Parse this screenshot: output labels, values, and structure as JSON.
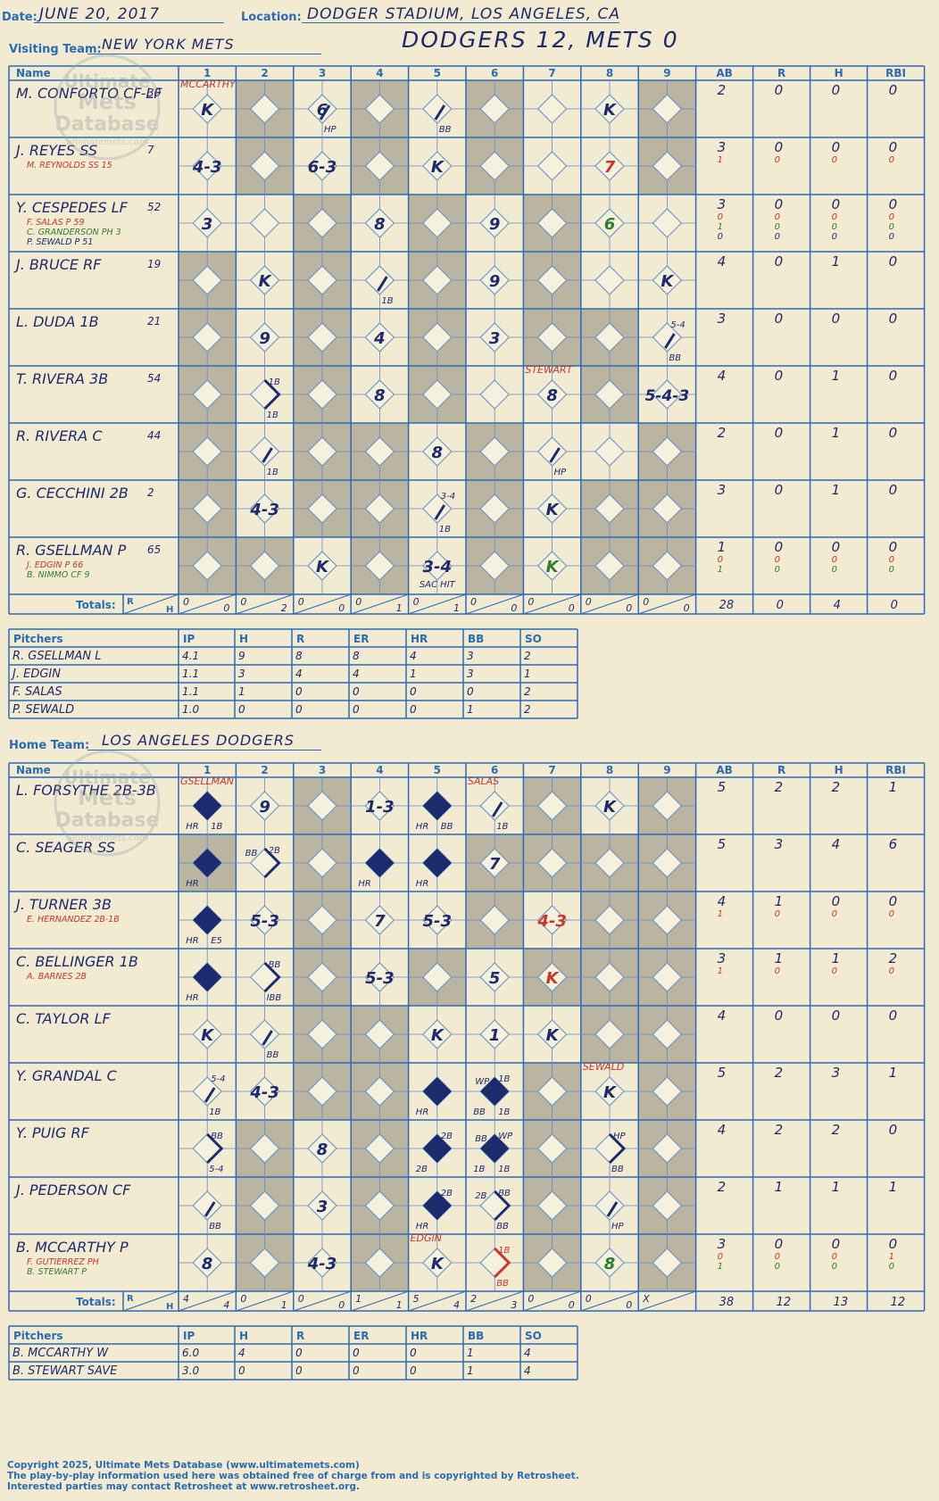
{
  "header": {
    "date_label": "Date:",
    "date": "JUNE 20, 2017",
    "location_label": "Location:",
    "location": "DODGER STADIUM, LOS ANGELES, CA",
    "visiting_label": "Visiting Team:",
    "visiting_team": "NEW YORK METS",
    "home_label": "Home Team:",
    "home_team": "LOS ANGELES DODGERS",
    "score_title": "DODGERS 12, METS 0"
  },
  "watermark": [
    "Ultimate",
    "Mets",
    "Database",
    "ultimatemets.com"
  ],
  "colors": {
    "ink": "#1c2a6e",
    "red": "#c8352a",
    "green": "#2e7d32",
    "grid": "#2a6bb5",
    "shade": "#bab4a0",
    "paper": "#f2ebd2"
  },
  "table_headers": {
    "name": "Name",
    "innings": [
      "1",
      "2",
      "3",
      "4",
      "5",
      "6",
      "7",
      "8",
      "9"
    ],
    "stats": [
      "AB",
      "R",
      "H",
      "RBI"
    ],
    "totals": "Totals:",
    "totals_rh": [
      "R",
      "H"
    ]
  },
  "pitcher_headers": [
    "Pitchers",
    "IP",
    "H",
    "R",
    "ER",
    "HR",
    "BB",
    "SO"
  ],
  "visitors": {
    "shaded_cells": [
      [
        2,
        4,
        6,
        9
      ],
      [
        2,
        4,
        6,
        9
      ],
      [
        3,
        5,
        7
      ],
      [
        1,
        3,
        5,
        7
      ],
      [
        1,
        3,
        5,
        7,
        8
      ],
      [
        1,
        3,
        5,
        8
      ],
      [
        1,
        3,
        4,
        6,
        9
      ],
      [
        1,
        3,
        4,
        6,
        8,
        9
      ],
      [
        1,
        2,
        4,
        6,
        8,
        9
      ]
    ],
    "batters": [
      {
        "name": "M. CONFORTO CF-LF",
        "num": "30",
        "subs": [],
        "stats": [
          [
            "2",
            "0",
            "0",
            "0"
          ]
        ],
        "plays": [
          {
            "inn": 1,
            "text": "K"
          },
          {
            "inn": 3,
            "text": "6",
            "bl": "HP",
            "slash": true
          },
          {
            "inn": 5,
            "bl": "BB",
            "slash": true
          },
          {
            "inn": 8,
            "text": "K"
          }
        ],
        "notes": [
          {
            "inn": 1,
            "text": "MCCARTHY"
          }
        ]
      },
      {
        "name": "J. REYES SS",
        "num": "7",
        "subs": [
          {
            "name": "M. REYNOLDS SS",
            "num": "15",
            "color": "red"
          }
        ],
        "stats": [
          [
            "3",
            "0",
            "0",
            "0"
          ],
          [
            "1",
            "0",
            "0",
            "0"
          ]
        ],
        "plays": [
          {
            "inn": 1,
            "text": "4-3"
          },
          {
            "inn": 3,
            "text": "6-3"
          },
          {
            "inn": 5,
            "text": "K"
          },
          {
            "inn": 8,
            "text": "7",
            "color": "red"
          }
        ],
        "notes": []
      },
      {
        "name": "Y. CESPEDES LF",
        "num": "52",
        "subs": [
          {
            "name": "F. SALAS P",
            "num": "59",
            "color": "red"
          },
          {
            "name": "C. GRANDERSON PH",
            "num": "3",
            "color": "green"
          },
          {
            "name": "P. SEWALD P",
            "num": "51",
            "color": "ink"
          }
        ],
        "stats": [
          [
            "3",
            "0",
            "0",
            "0"
          ],
          [
            "0",
            "0",
            "0",
            "0"
          ],
          [
            "1",
            "0",
            "0",
            "0"
          ],
          [
            "0",
            "0",
            "0",
            "0"
          ]
        ],
        "plays": [
          {
            "inn": 1,
            "text": "3"
          },
          {
            "inn": 4,
            "text": "8"
          },
          {
            "inn": 6,
            "text": "9"
          },
          {
            "inn": 8,
            "text": "6",
            "color": "green"
          }
        ],
        "notes": []
      },
      {
        "name": "J. BRUCE RF",
        "num": "19",
        "subs": [],
        "stats": [
          [
            "4",
            "0",
            "1",
            "0"
          ]
        ],
        "plays": [
          {
            "inn": 2,
            "text": "K"
          },
          {
            "inn": 4,
            "bl": "1B",
            "slash": true
          },
          {
            "inn": 6,
            "text": "9"
          },
          {
            "inn": 9,
            "text": "K"
          }
        ],
        "notes": []
      },
      {
        "name": "L. DUDA 1B",
        "num": "21",
        "subs": [],
        "stats": [
          [
            "3",
            "0",
            "0",
            "0"
          ]
        ],
        "plays": [
          {
            "inn": 2,
            "text": "9"
          },
          {
            "inn": 4,
            "text": "4"
          },
          {
            "inn": 6,
            "text": "3"
          },
          {
            "inn": 9,
            "tr": "5-4",
            "bl": "BB",
            "slash": true
          }
        ],
        "notes": []
      },
      {
        "name": "T. RIVERA 3B",
        "num": "54",
        "subs": [],
        "stats": [
          [
            "4",
            "0",
            "1",
            "0"
          ]
        ],
        "plays": [
          {
            "inn": 2,
            "tr": "1B",
            "bl": "1B",
            "bracket": true
          },
          {
            "inn": 4,
            "text": "8"
          },
          {
            "inn": 7,
            "text": "8"
          },
          {
            "inn": 9,
            "text": "5-4-3"
          }
        ],
        "notes": [
          {
            "inn": 7,
            "text": "STEWART"
          }
        ]
      },
      {
        "name": "R. RIVERA C",
        "num": "44",
        "subs": [],
        "stats": [
          [
            "2",
            "0",
            "1",
            "0"
          ]
        ],
        "plays": [
          {
            "inn": 2,
            "bl": "1B",
            "slash": true
          },
          {
            "inn": 5,
            "text": "8"
          },
          {
            "inn": 7,
            "bl": "HP",
            "slash": true
          }
        ],
        "notes": []
      },
      {
        "name": "G. CECCHINI 2B",
        "num": "2",
        "subs": [],
        "stats": [
          [
            "3",
            "0",
            "1",
            "0"
          ]
        ],
        "plays": [
          {
            "inn": 2,
            "text": "4-3"
          },
          {
            "inn": 5,
            "tr": "3-4",
            "bl": "1B",
            "slash": true
          },
          {
            "inn": 7,
            "text": "K"
          }
        ],
        "notes": []
      },
      {
        "name": "R. GSELLMAN P",
        "num": "65",
        "subs": [
          {
            "name": "J. EDGIN P",
            "num": "66",
            "color": "red"
          },
          {
            "name": "B. NIMMO CF",
            "num": "9",
            "color": "green"
          }
        ],
        "stats": [
          [
            "1",
            "0",
            "0",
            "0"
          ],
          [
            "0",
            "0",
            "0",
            "0"
          ],
          [
            "1",
            "0",
            "0",
            "0"
          ]
        ],
        "plays": [
          {
            "inn": 3,
            "text": "K"
          },
          {
            "inn": 5,
            "text": "3-4",
            "below": "SAC HIT"
          },
          {
            "inn": 7,
            "text": "K",
            "color": "green"
          }
        ],
        "notes": []
      }
    ],
    "totals": [
      [
        "0",
        "0"
      ],
      [
        "0",
        "2"
      ],
      [
        "0",
        "0"
      ],
      [
        "0",
        "1"
      ],
      [
        "0",
        "1"
      ],
      [
        "0",
        "0"
      ],
      [
        "0",
        "0"
      ],
      [
        "0",
        "0"
      ],
      [
        "0",
        "0"
      ]
    ],
    "totals_stats": [
      "28",
      "0",
      "4",
      "0"
    ],
    "pitchers": [
      [
        "R. GSELLMAN  L",
        "4.1",
        "9",
        "8",
        "8",
        "4",
        "3",
        "2"
      ],
      [
        "J. EDGIN",
        "1.1",
        "3",
        "4",
        "4",
        "1",
        "3",
        "1"
      ],
      [
        "F. SALAS",
        "1.1",
        "1",
        "0",
        "0",
        "0",
        "0",
        "2"
      ],
      [
        "P. SEWALD",
        "1.0",
        "0",
        "0",
        "0",
        "0",
        "1",
        "2"
      ]
    ]
  },
  "home": {
    "shaded_cells": [
      [
        3,
        7,
        9
      ],
      [
        1,
        3,
        6,
        7,
        8,
        9
      ],
      [
        3,
        6,
        8,
        9
      ],
      [
        3,
        5,
        7,
        8,
        9
      ],
      [
        3,
        4,
        8,
        9
      ],
      [
        3,
        4,
        7,
        9
      ],
      [
        2,
        4,
        7,
        9
      ],
      [
        2,
        4,
        7,
        9
      ],
      [
        2,
        4,
        7,
        9
      ]
    ],
    "batters": [
      {
        "name": "L. FORSYTHE 2B-3B",
        "num": "",
        "subs": [],
        "stats": [
          [
            "5",
            "2",
            "2",
            "1"
          ]
        ],
        "plays": [
          {
            "inn": 1,
            "run": true,
            "bl": "HR",
            "br": "1B"
          },
          {
            "inn": 2,
            "text": "9"
          },
          {
            "inn": 4,
            "text": "1-3"
          },
          {
            "inn": 5,
            "run": true,
            "bl": "HR",
            "br": "BB"
          },
          {
            "inn": 6,
            "bl": "1B",
            "slash": true
          },
          {
            "inn": 8,
            "text": "K"
          }
        ],
        "notes": [
          {
            "inn": 1,
            "text": "GSELLMAN"
          },
          {
            "inn": 6,
            "text": "SALAS"
          }
        ]
      },
      {
        "name": "C. SEAGER SS",
        "num": "",
        "subs": [],
        "stats": [
          [
            "5",
            "3",
            "4",
            "6"
          ]
        ],
        "plays": [
          {
            "inn": 1,
            "run": true,
            "bl": "HR"
          },
          {
            "inn": 2,
            "tl": "BB",
            "tr": "2B",
            "bracket": true
          },
          {
            "inn": 4,
            "run": true,
            "bl": "HR"
          },
          {
            "inn": 5,
            "run": true,
            "bl": "HR"
          },
          {
            "inn": 6,
            "text": "7"
          }
        ],
        "notes": []
      },
      {
        "name": "J. TURNER 3B",
        "num": "",
        "subs": [
          {
            "name": "E. HERNANDEZ 2B-1B",
            "num": "",
            "color": "red"
          }
        ],
        "stats": [
          [
            "4",
            "1",
            "0",
            "0"
          ],
          [
            "1",
            "0",
            "0",
            "0"
          ]
        ],
        "plays": [
          {
            "inn": 1,
            "run": true,
            "bl": "HR",
            "br": "E5"
          },
          {
            "inn": 2,
            "text": "5-3"
          },
          {
            "inn": 4,
            "text": "7"
          },
          {
            "inn": 5,
            "text": "5-3"
          },
          {
            "inn": 7,
            "text": "4-3",
            "color": "red"
          }
        ],
        "notes": []
      },
      {
        "name": "C. BELLINGER 1B",
        "num": "",
        "subs": [
          {
            "name": "A. BARNES 2B",
            "num": "",
            "color": "red"
          }
        ],
        "stats": [
          [
            "3",
            "1",
            "1",
            "2"
          ],
          [
            "1",
            "0",
            "0",
            "0"
          ]
        ],
        "plays": [
          {
            "inn": 1,
            "run": true,
            "bl": "HR"
          },
          {
            "inn": 2,
            "tr": "BB",
            "bl": "IBB",
            "bracket": true
          },
          {
            "inn": 4,
            "text": "5-3"
          },
          {
            "inn": 6,
            "text": "5"
          },
          {
            "inn": 7,
            "text": "K",
            "color": "red"
          }
        ],
        "notes": []
      },
      {
        "name": "C. TAYLOR LF",
        "num": "",
        "subs": [],
        "stats": [
          [
            "4",
            "0",
            "0",
            "0"
          ]
        ],
        "plays": [
          {
            "inn": 1,
            "text": "K"
          },
          {
            "inn": 2,
            "bl": "BB",
            "slash": true
          },
          {
            "inn": 5,
            "text": "K"
          },
          {
            "inn": 6,
            "text": "1"
          },
          {
            "inn": 7,
            "text": "K"
          }
        ],
        "notes": []
      },
      {
        "name": "Y. GRANDAL C",
        "num": "",
        "subs": [],
        "stats": [
          [
            "5",
            "2",
            "3",
            "1"
          ]
        ],
        "plays": [
          {
            "inn": 1,
            "tr": "5-4",
            "bl": "1B",
            "slash": true
          },
          {
            "inn": 2,
            "text": "4-3"
          },
          {
            "inn": 5,
            "run": true,
            "bl": "HR"
          },
          {
            "inn": 6,
            "run": true,
            "tl": "WP",
            "tr": "1B",
            "bl": "BB",
            "br": "1B"
          },
          {
            "inn": 8,
            "text": "K"
          }
        ],
        "notes": [
          {
            "inn": 8,
            "text": "SEWALD"
          }
        ]
      },
      {
        "name": "Y. PUIG RF",
        "num": "",
        "subs": [],
        "stats": [
          [
            "4",
            "2",
            "2",
            "0"
          ]
        ],
        "plays": [
          {
            "inn": 1,
            "tr": "BB",
            "bl": "5-4",
            "bracket": true
          },
          {
            "inn": 3,
            "text": "8"
          },
          {
            "inn": 5,
            "run": true,
            "tr": "2B",
            "bl": "2B"
          },
          {
            "inn": 6,
            "run": true,
            "tl": "BB",
            "tr": "WP",
            "bl": "1B",
            "br": "1B"
          },
          {
            "inn": 8,
            "tr": "HP",
            "bl": "BB",
            "bracket": true
          }
        ],
        "notes": []
      },
      {
        "name": "J. PEDERSON CF",
        "num": "",
        "subs": [],
        "stats": [
          [
            "2",
            "1",
            "1",
            "1"
          ]
        ],
        "plays": [
          {
            "inn": 1,
            "bl": "BB",
            "slash": true
          },
          {
            "inn": 3,
            "text": "3"
          },
          {
            "inn": 5,
            "run": true,
            "tr": "2B",
            "bl": "HR"
          },
          {
            "inn": 6,
            "tl": "2B",
            "tr": "BB",
            "bl": "BB",
            "bracket": true
          },
          {
            "inn": 8,
            "bl": "HP",
            "slash": true
          }
        ],
        "notes": []
      },
      {
        "name": "B. MCCARTHY P",
        "num": "",
        "subs": [
          {
            "name": "F. GUTIERREZ PH",
            "num": "",
            "color": "red"
          },
          {
            "name": "B. STEWART P",
            "num": "",
            "color": "green"
          }
        ],
        "stats": [
          [
            "3",
            "0",
            "0",
            "0"
          ],
          [
            "0",
            "0",
            "0",
            "1"
          ],
          [
            "1",
            "0",
            "0",
            "0"
          ]
        ],
        "plays": [
          {
            "inn": 1,
            "text": "8"
          },
          {
            "inn": 3,
            "text": "4-3"
          },
          {
            "inn": 5,
            "text": "K"
          },
          {
            "inn": 6,
            "tr": "1B",
            "bl": "BB",
            "bracket": true,
            "color": "red"
          },
          {
            "inn": 8,
            "text": "8",
            "color": "green"
          }
        ],
        "notes": [
          {
            "inn": 5,
            "text": "EDGIN"
          }
        ]
      }
    ],
    "totals": [
      [
        "4",
        "4"
      ],
      [
        "0",
        "1"
      ],
      [
        "0",
        "0"
      ],
      [
        "1",
        "1"
      ],
      [
        "5",
        "4"
      ],
      [
        "2",
        "3"
      ],
      [
        "0",
        "0"
      ],
      [
        "0",
        "0"
      ],
      [
        "X",
        ""
      ]
    ],
    "totals_stats": [
      "38",
      "12",
      "13",
      "12"
    ],
    "pitchers": [
      [
        "B. MCCARTHY  W",
        "6.0",
        "4",
        "0",
        "0",
        "0",
        "1",
        "4"
      ],
      [
        "B. STEWART  SAVE",
        "3.0",
        "0",
        "0",
        "0",
        "0",
        "1",
        "4"
      ]
    ]
  },
  "footer": [
    "Copyright 2025, Ultimate Mets Database (www.ultimatemets.com)",
    " The play-by-play information used here was obtained free of charge from and is copyrighted by Retrosheet.",
    " Interested parties may contact Retrosheet at www.retrosheet.org."
  ]
}
